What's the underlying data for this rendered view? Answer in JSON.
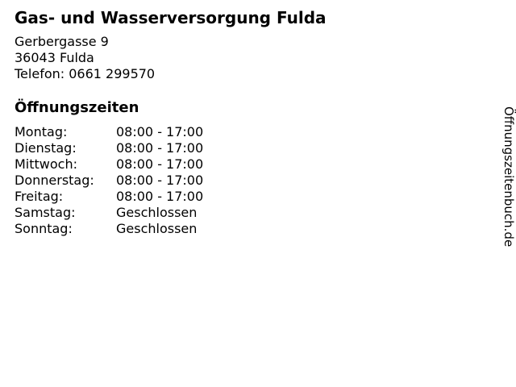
{
  "business": {
    "name": "Gas- und Wasserversorgung Fulda",
    "street": "Gerbergasse 9",
    "city": "36043 Fulda",
    "phone": "Telefon: 0661 299570"
  },
  "hours": {
    "heading": "Öffnungszeiten",
    "rows": [
      {
        "day": "Montag:",
        "time": "08:00 - 17:00"
      },
      {
        "day": "Dienstag:",
        "time": "08:00 - 17:00"
      },
      {
        "day": "Mittwoch:",
        "time": "08:00 - 17:00"
      },
      {
        "day": "Donnerstag:",
        "time": "08:00 - 17:00"
      },
      {
        "day": "Freitag:",
        "time": "08:00 - 17:00"
      },
      {
        "day": "Samstag:",
        "time": "Geschlossen"
      },
      {
        "day": "Sonntag:",
        "time": "Geschlossen"
      }
    ]
  },
  "watermark": {
    "text": "Öffnungszeitenbuch.de"
  },
  "colors": {
    "text": "#000000",
    "background": "#ffffff"
  }
}
